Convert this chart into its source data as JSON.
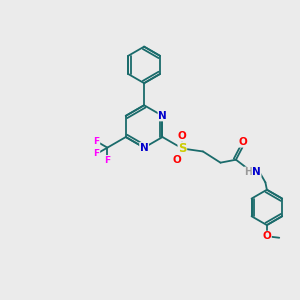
{
  "background_color": "#ebebeb",
  "figsize": [
    3.0,
    3.0
  ],
  "dpi": 100,
  "atom_colors": {
    "N": "#0000cc",
    "O": "#ff0000",
    "F": "#ff00ff",
    "S": "#cccc00",
    "C": "#1a6b6b",
    "H": "#999999"
  },
  "bond_color": "#1a6b6b",
  "bond_width": 1.3,
  "fs": 7.5
}
